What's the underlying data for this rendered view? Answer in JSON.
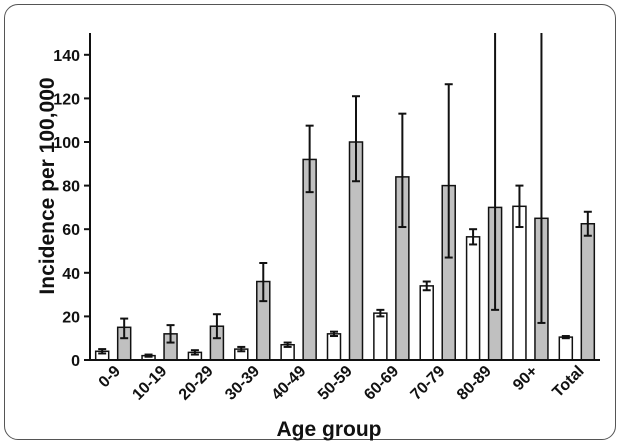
{
  "chart_data": {
    "type": "bar",
    "xlabel": "Age group",
    "ylabel": "Incidence per  100,000",
    "ylim": [
      0,
      150
    ],
    "yticks": [
      "0",
      "20",
      "40",
      "60",
      "80",
      "100",
      "120",
      "140"
    ],
    "categories": [
      "0-9",
      "10-19",
      "20-29",
      "30-39",
      "40-49",
      "50-59",
      "60-69",
      "70-79",
      "80-89",
      "90+",
      "Total"
    ],
    "grid": false,
    "legend": "none",
    "series": [
      {
        "color": "#ffffff",
        "values": [
          4,
          2,
          3.5,
          5,
          7,
          12,
          21.5,
          34,
          56.5,
          70.5,
          10.5
        ],
        "err_low": [
          3,
          1.5,
          2.5,
          4,
          6,
          11,
          20,
          32,
          53,
          61,
          10
        ],
        "err_high": [
          5,
          2.5,
          4.5,
          6,
          8,
          13,
          23,
          36,
          60,
          80,
          11
        ]
      },
      {
        "color": "#c0c0c0",
        "values": [
          15,
          12,
          15.5,
          36,
          92,
          100,
          84,
          80,
          70,
          65,
          62.5
        ],
        "err_low": [
          10,
          8,
          10,
          27,
          77,
          82,
          61,
          47,
          23,
          17,
          57
        ],
        "err_high": [
          19,
          16,
          21,
          44.5,
          107.5,
          121,
          113,
          126.5,
          150,
          150,
          68
        ]
      }
    ]
  }
}
